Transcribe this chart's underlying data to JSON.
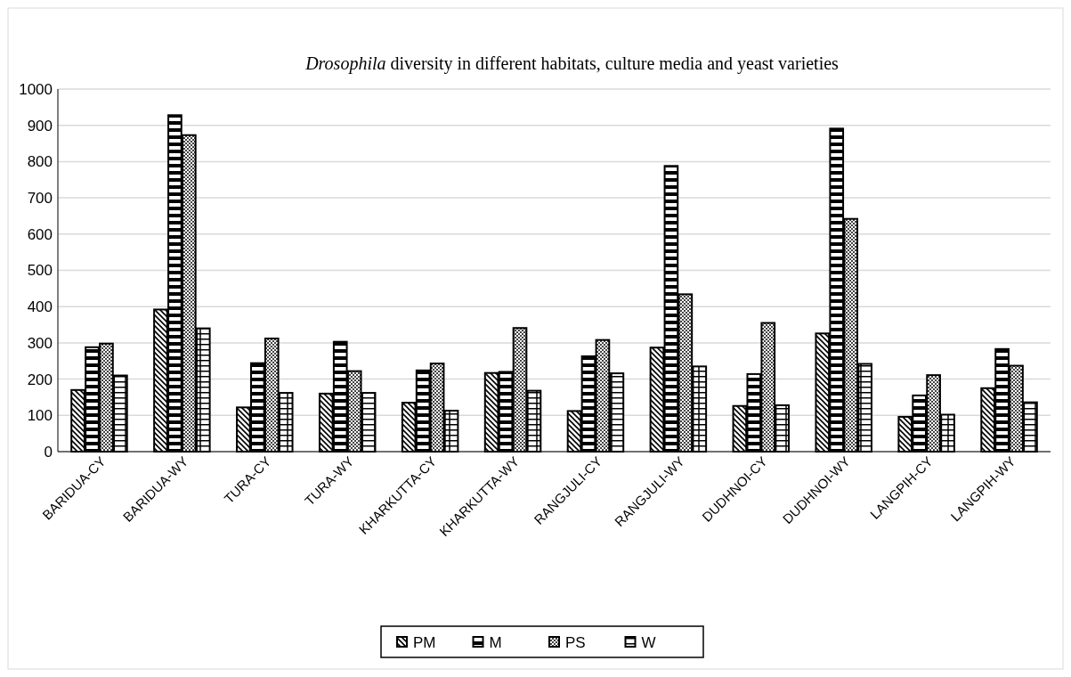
{
  "chart_data": {
    "type": "bar",
    "title": "Drosophila diversity in different habitats, culture  media and yeast varieties",
    "categories": [
      "BARIDUA-CY",
      "BARIDUA-WY",
      "TURA-CY",
      "TURA-WY",
      "KHARKUTTA-CY",
      "KHARKUTTA-WY",
      "RANGJULI-CY",
      "RANGJULI-WY",
      "DUDHNOI-CY",
      "DUDHNOI-WY",
      "LANGPIH-CY",
      "LANGPIH-WY"
    ],
    "series": [
      {
        "name": "PM",
        "color": "#000000",
        "values": [
          170,
          392,
          122,
          160,
          135,
          217,
          112,
          287,
          126,
          326,
          96,
          175
        ]
      },
      {
        "name": "M",
        "color": "#000000",
        "values": [
          288,
          928,
          244,
          303,
          224,
          220,
          263,
          788,
          214,
          891,
          155,
          283
        ]
      },
      {
        "name": "PS",
        "color": "#000000",
        "values": [
          298,
          873,
          312,
          222,
          243,
          341,
          308,
          434,
          355,
          642,
          211,
          237
        ]
      },
      {
        "name": "W",
        "color": "#000000",
        "values": [
          210,
          340,
          162,
          162,
          113,
          168,
          216,
          235,
          128,
          242,
          102,
          136
        ]
      }
    ],
    "ylim": [
      0,
      1000
    ],
    "yticks": [
      0,
      100,
      200,
      300,
      400,
      500,
      600,
      700,
      800,
      900,
      1000
    ],
    "grid": "y",
    "legend": "bottom"
  }
}
